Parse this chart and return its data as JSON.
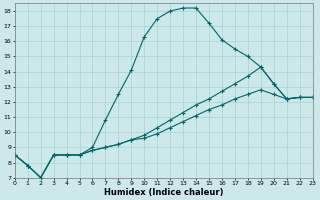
{
  "xlabel": "Humidex (Indice chaleur)",
  "xlim": [
    0,
    23
  ],
  "ylim": [
    7,
    18.5
  ],
  "yticks": [
    7,
    8,
    9,
    10,
    11,
    12,
    13,
    14,
    15,
    16,
    17,
    18
  ],
  "xticks": [
    0,
    1,
    2,
    3,
    4,
    5,
    6,
    7,
    8,
    9,
    10,
    11,
    12,
    13,
    14,
    15,
    16,
    17,
    18,
    19,
    20,
    21,
    22,
    23
  ],
  "background_color": "#cce8e8",
  "grid_color": "#aad0d0",
  "line_color": "#006868",
  "series": [
    {
      "x": [
        0,
        1,
        2,
        3,
        4,
        5,
        6,
        7,
        8,
        9,
        10,
        11,
        12,
        13,
        14,
        15,
        16,
        17,
        18,
        19,
        20,
        21,
        22,
        23
      ],
      "y": [
        8.5,
        7.8,
        7.0,
        8.5,
        8.5,
        8.5,
        9.0,
        10.8,
        12.5,
        14.1,
        16.3,
        17.5,
        18.0,
        18.2,
        18.2,
        17.2,
        16.1,
        15.5,
        15.0,
        14.3,
        13.2,
        12.2,
        12.3,
        12.3
      ]
    },
    {
      "x": [
        0,
        1,
        2,
        3,
        4,
        5,
        6,
        7,
        8,
        9,
        10,
        11,
        12,
        13,
        14,
        15,
        16,
        17,
        18,
        19,
        20,
        21,
        22,
        23
      ],
      "y": [
        8.5,
        7.8,
        7.0,
        8.5,
        8.5,
        8.5,
        8.8,
        9.0,
        9.2,
        9.5,
        9.8,
        10.3,
        10.8,
        11.3,
        11.8,
        12.2,
        12.7,
        13.2,
        13.7,
        14.3,
        13.2,
        12.2,
        12.3,
        12.3
      ]
    },
    {
      "x": [
        0,
        1,
        2,
        3,
        4,
        5,
        6,
        7,
        8,
        9,
        10,
        11,
        12,
        13,
        14,
        15,
        16,
        17,
        18,
        19,
        20,
        21,
        22,
        23
      ],
      "y": [
        8.5,
        7.8,
        7.0,
        8.5,
        8.5,
        8.5,
        8.8,
        9.0,
        9.2,
        9.5,
        9.6,
        9.9,
        10.3,
        10.7,
        11.1,
        11.5,
        11.8,
        12.2,
        12.5,
        12.8,
        12.5,
        12.2,
        12.3,
        12.3
      ]
    }
  ]
}
